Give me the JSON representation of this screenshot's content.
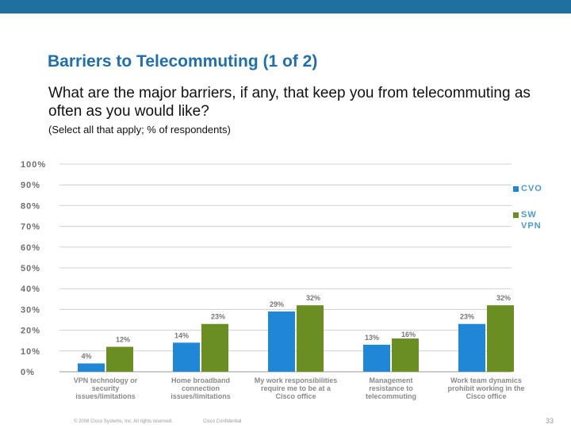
{
  "header": {
    "title": "Barriers to Telecommuting (1 of 2)",
    "subtitle": "What are the major barriers, if any, that keep you from telecommuting as often as you would like?",
    "note": "(Select all that apply; % of respondents)"
  },
  "colors": {
    "top_bar": "#1f6f9f",
    "title": "#1f6fb0",
    "cvo": "#1f87d6",
    "sw_vpn": "#6b8e23"
  },
  "chart_data": {
    "type": "bar",
    "title": "",
    "xlabel": "",
    "ylabel": "",
    "ylim": [
      0,
      100
    ],
    "yticks": [
      "0%",
      "10%",
      "20%",
      "30%",
      "40%",
      "50%",
      "60%",
      "70%",
      "80%",
      "90%",
      "100%"
    ],
    "categories": [
      "VPN technology or security issues/limitations",
      "Home broadband connection issues/limitations",
      "My work responsibilities require me to be at a Cisco office",
      "Management resistance to telecommuting",
      "Work team dynamics prohibit working in the Cisco office"
    ],
    "series": [
      {
        "name": "CVO",
        "values": [
          4,
          14,
          29,
          13,
          23
        ],
        "labels": [
          "4%",
          "14%",
          "29%",
          "13%",
          "23%"
        ]
      },
      {
        "name": "SW VPN",
        "values": [
          12,
          23,
          32,
          16,
          32
        ],
        "labels": [
          "12%",
          "23%",
          "32%",
          "16%",
          "32%"
        ]
      }
    ],
    "legend": [
      "CVO",
      "SW VPN"
    ]
  },
  "footer": {
    "copyright": "© 2008 Cisco Systems, Inc. All rights reserved.",
    "confidential": "Cisco Confidential",
    "page": "33"
  }
}
